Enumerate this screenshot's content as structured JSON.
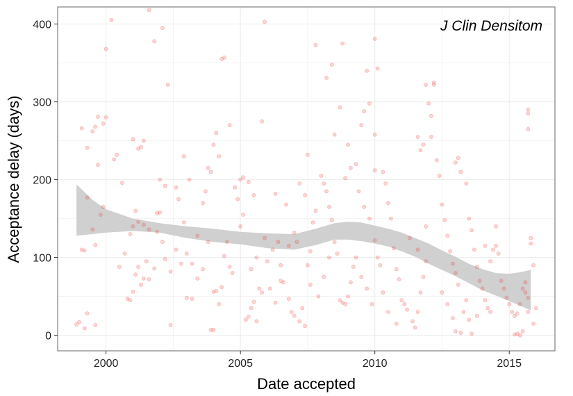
{
  "chart_data": {
    "type": "scatter",
    "title": "",
    "annotation": "J Clin Densitom",
    "xlabel": "Date accepted",
    "ylabel": "Acceptance delay (days)",
    "xlim": [
      1998.2,
      2016.7
    ],
    "ylim": [
      -20,
      422
    ],
    "x_ticks": [
      2000,
      2005,
      2010,
      2015
    ],
    "x_tick_labels": [
      "2000",
      "2005",
      "2010",
      "2015"
    ],
    "y_ticks": [
      0,
      100,
      200,
      300,
      400
    ],
    "y_tick_labels": [
      "0",
      "100",
      "200",
      "300",
      "400"
    ],
    "grid": true,
    "point_color": "#e8413a",
    "band_color": "#cccccc",
    "points": [
      [
        1998.9,
        14
      ],
      [
        1999.0,
        17
      ],
      [
        1999.2,
        9
      ],
      [
        1999.3,
        28
      ],
      [
        1999.6,
        13
      ],
      [
        1999.1,
        110
      ],
      [
        1999.2,
        109
      ],
      [
        1999.6,
        116
      ],
      [
        1999.5,
        136
      ],
      [
        1999.8,
        155
      ],
      [
        1999.7,
        219
      ],
      [
        1999.9,
        165
      ],
      [
        1999.3,
        241
      ],
      [
        1999.5,
        262
      ],
      [
        1999.6,
        268
      ],
      [
        1999.7,
        281
      ],
      [
        1999.9,
        272
      ],
      [
        2000.0,
        280
      ],
      [
        2000.0,
        368
      ],
      [
        2000.2,
        405
      ],
      [
        1999.1,
        266
      ],
      [
        1999.3,
        177
      ],
      [
        2000.3,
        226
      ],
      [
        2000.4,
        232
      ],
      [
        2000.6,
        196
      ],
      [
        2000.8,
        47
      ],
      [
        2000.9,
        45
      ],
      [
        2001.0,
        56
      ],
      [
        2001.1,
        78
      ],
      [
        2001.2,
        88
      ],
      [
        2001.3,
        65
      ],
      [
        2001.4,
        73
      ],
      [
        2001.5,
        95
      ],
      [
        2001.6,
        72
      ],
      [
        2001.8,
        86
      ],
      [
        2001.9,
        133
      ],
      [
        2001.0,
        140
      ],
      [
        2001.2,
        146
      ],
      [
        2001.4,
        142
      ],
      [
        2001.6,
        136
      ],
      [
        2001.9,
        157
      ],
      [
        2002.0,
        158
      ],
      [
        2002.1,
        120
      ],
      [
        2002.2,
        98
      ],
      [
        2002.4,
        82
      ],
      [
        2001.0,
        252
      ],
      [
        2001.2,
        240
      ],
      [
        2001.3,
        242
      ],
      [
        2001.4,
        250
      ],
      [
        2001.6,
        418
      ],
      [
        2001.8,
        378
      ],
      [
        2002.1,
        395
      ],
      [
        2002.0,
        200
      ],
      [
        2002.2,
        192
      ],
      [
        2002.3,
        322
      ],
      [
        2002.4,
        13
      ],
      [
        2002.6,
        110
      ],
      [
        2002.8,
        92
      ],
      [
        2002.9,
        145
      ],
      [
        2003.0,
        48
      ],
      [
        2003.2,
        47
      ],
      [
        2003.4,
        128
      ],
      [
        2003.6,
        170
      ],
      [
        2003.7,
        185
      ],
      [
        2003.8,
        215
      ],
      [
        2003.9,
        210
      ],
      [
        2004.0,
        7
      ],
      [
        2003.9,
        7
      ],
      [
        2004.0,
        56
      ],
      [
        2004.1,
        57
      ],
      [
        2004.2,
        40
      ],
      [
        2004.3,
        62
      ],
      [
        2004.4,
        102
      ],
      [
        2004.5,
        120
      ],
      [
        2004.6,
        88
      ],
      [
        2004.7,
        80
      ],
      [
        2004.0,
        245
      ],
      [
        2004.1,
        260
      ],
      [
        2004.2,
        230
      ],
      [
        2004.3,
        355
      ],
      [
        2004.4,
        357
      ],
      [
        2004.6,
        270
      ],
      [
        2004.8,
        190
      ],
      [
        2004.9,
        175
      ],
      [
        2005.0,
        140
      ],
      [
        2005.1,
        155
      ],
      [
        2005.2,
        20
      ],
      [
        2005.3,
        24
      ],
      [
        2005.4,
        35
      ],
      [
        2005.5,
        43
      ],
      [
        2005.6,
        18
      ],
      [
        2005.7,
        60
      ],
      [
        2005.8,
        55
      ],
      [
        2005.0,
        200
      ],
      [
        2005.1,
        203
      ],
      [
        2005.3,
        197
      ],
      [
        2005.5,
        180
      ],
      [
        2005.8,
        275
      ],
      [
        2005.9,
        403
      ],
      [
        2006.0,
        95
      ],
      [
        2006.2,
        110
      ],
      [
        2006.4,
        120
      ],
      [
        2006.5,
        70
      ],
      [
        2006.6,
        68
      ],
      [
        2006.8,
        47
      ],
      [
        2006.9,
        30
      ],
      [
        2007.0,
        25
      ],
      [
        2007.2,
        18
      ],
      [
        2007.3,
        35
      ],
      [
        2007.4,
        12
      ],
      [
        2007.5,
        90
      ],
      [
        2007.6,
        108
      ],
      [
        2007.7,
        145
      ],
      [
        2007.8,
        160
      ],
      [
        2007.2,
        195
      ],
      [
        2007.4,
        180
      ],
      [
        2007.5,
        232
      ],
      [
        2007.8,
        373
      ],
      [
        2008.0,
        205
      ],
      [
        2008.1,
        195
      ],
      [
        2008.2,
        185
      ],
      [
        2008.3,
        165
      ],
      [
        2008.4,
        148
      ],
      [
        2008.5,
        120
      ],
      [
        2008.6,
        105
      ],
      [
        2008.7,
        45
      ],
      [
        2008.8,
        42
      ],
      [
        2008.9,
        40
      ],
      [
        2009.0,
        50
      ],
      [
        2009.1,
        68
      ],
      [
        2009.2,
        88
      ],
      [
        2009.0,
        245
      ],
      [
        2008.2,
        331
      ],
      [
        2008.4,
        348
      ],
      [
        2008.7,
        293
      ],
      [
        2008.9,
        202
      ],
      [
        2009.1,
        215
      ],
      [
        2009.3,
        220
      ],
      [
        2009.5,
        270
      ],
      [
        2009.6,
        288
      ],
      [
        2009.7,
        340
      ],
      [
        2009.8,
        298
      ],
      [
        2008.5,
        258
      ],
      [
        2008.8,
        375
      ],
      [
        2009.4,
        185
      ],
      [
        2009.6,
        165
      ],
      [
        2009.8,
        150
      ],
      [
        2010.0,
        122
      ],
      [
        2010.1,
        100
      ],
      [
        2010.2,
        90
      ],
      [
        2010.0,
        212
      ],
      [
        2010.0,
        258
      ],
      [
        2010.0,
        381
      ],
      [
        2010.1,
        343
      ],
      [
        2010.3,
        210
      ],
      [
        2010.4,
        195
      ],
      [
        2010.5,
        170
      ],
      [
        2010.6,
        150
      ],
      [
        2010.7,
        112
      ],
      [
        2010.8,
        85
      ],
      [
        2010.9,
        72
      ],
      [
        2011.0,
        45
      ],
      [
        2011.1,
        40
      ],
      [
        2011.2,
        33
      ],
      [
        2011.4,
        18
      ],
      [
        2011.5,
        10
      ],
      [
        2011.6,
        30
      ],
      [
        2011.7,
        55
      ],
      [
        2011.8,
        75
      ],
      [
        2011.9,
        95
      ],
      [
        2011.6,
        255
      ],
      [
        2011.7,
        238
      ],
      [
        2011.8,
        245
      ],
      [
        2011.9,
        322
      ],
      [
        2012.0,
        298
      ],
      [
        2012.1,
        282
      ],
      [
        2012.2,
        322
      ],
      [
        2012.2,
        325
      ],
      [
        2012.1,
        255
      ],
      [
        2012.3,
        225
      ],
      [
        2012.4,
        205
      ],
      [
        2012.5,
        168
      ],
      [
        2012.6,
        148
      ],
      [
        2012.7,
        128
      ],
      [
        2012.8,
        108
      ],
      [
        2012.9,
        92
      ],
      [
        2013.0,
        80
      ],
      [
        2013.1,
        65
      ],
      [
        2013.0,
        5
      ],
      [
        2013.2,
        3
      ],
      [
        2013.3,
        30
      ],
      [
        2013.4,
        45
      ],
      [
        2013.0,
        222
      ],
      [
        2013.1,
        228
      ],
      [
        2013.2,
        210
      ],
      [
        2013.4,
        195
      ],
      [
        2013.5,
        150
      ],
      [
        2013.6,
        135
      ],
      [
        2013.7,
        110
      ],
      [
        2013.8,
        88
      ],
      [
        2013.9,
        70
      ],
      [
        2014.0,
        60
      ],
      [
        2014.1,
        45
      ],
      [
        2014.2,
        35
      ],
      [
        2014.3,
        30
      ],
      [
        2014.5,
        140
      ],
      [
        2014.5,
        115
      ],
      [
        2014.4,
        110
      ],
      [
        2014.6,
        105
      ],
      [
        2014.7,
        70
      ],
      [
        2014.8,
        60
      ],
      [
        2014.9,
        48
      ],
      [
        2015.0,
        40
      ],
      [
        2015.1,
        30
      ],
      [
        2015.2,
        25
      ],
      [
        2015.3,
        28
      ],
      [
        2015.4,
        40
      ],
      [
        2015.2,
        1
      ],
      [
        2015.3,
        2
      ],
      [
        2015.4,
        0
      ],
      [
        2015.5,
        5
      ],
      [
        2015.5,
        60
      ],
      [
        2015.6,
        55
      ],
      [
        2015.6,
        68
      ],
      [
        2015.7,
        48
      ],
      [
        2015.7,
        30
      ],
      [
        2015.7,
        290
      ],
      [
        2015.7,
        285
      ],
      [
        2015.7,
        265
      ],
      [
        2015.8,
        125
      ],
      [
        2015.8,
        118
      ],
      [
        2015.9,
        90
      ],
      [
        2015.9,
        15
      ],
      [
        2016.0,
        35
      ],
      [
        2013.6,
        2
      ],
      [
        2013.5,
        20
      ],
      [
        2013.8,
        25
      ],
      [
        2014.1,
        115
      ],
      [
        2014.3,
        95
      ],
      [
        2003.0,
        105
      ],
      [
        2003.2,
        92
      ],
      [
        2003.4,
        73
      ],
      [
        2003.6,
        85
      ],
      [
        2003.8,
        120
      ],
      [
        2006.3,
        182
      ],
      [
        2006.7,
        168
      ],
      [
        2007.0,
        132
      ],
      [
        2007.1,
        120
      ],
      [
        2006.1,
        60
      ],
      [
        2006.3,
        42
      ],
      [
        2000.5,
        88
      ],
      [
        2000.7,
        105
      ],
      [
        2000.9,
        130
      ],
      [
        2001.1,
        160
      ],
      [
        2002.6,
        190
      ],
      [
        2002.7,
        175
      ],
      [
        2002.9,
        230
      ],
      [
        2003.1,
        200
      ],
      [
        2009.3,
        100
      ],
      [
        2009.5,
        75
      ],
      [
        2009.7,
        60
      ],
      [
        2009.9,
        40
      ],
      [
        2010.3,
        55
      ],
      [
        2010.5,
        30
      ],
      [
        2010.8,
        15
      ],
      [
        2011.3,
        125
      ],
      [
        2011.6,
        110
      ],
      [
        2011.9,
        140
      ],
      [
        2012.5,
        55
      ],
      [
        2012.7,
        40
      ],
      [
        2012.9,
        22
      ],
      [
        2005.4,
        85
      ],
      [
        2005.6,
        100
      ],
      [
        2005.9,
        125
      ],
      [
        2006.5,
        90
      ],
      [
        2006.8,
        115
      ],
      [
        2007.6,
        65
      ],
      [
        2007.9,
        50
      ],
      [
        2008.1,
        75
      ],
      [
        2008.3,
        100
      ]
    ],
    "trend": {
      "x": [
        1998.9,
        1999.5,
        2000.0,
        2001.0,
        2002.0,
        2003.0,
        2004.0,
        2005.0,
        2006.0,
        2007.0,
        2007.8,
        2008.5,
        2009.0,
        2009.5,
        2010.0,
        2010.5,
        2011.0,
        2011.5,
        2012.0,
        2012.5,
        2013.0,
        2013.5,
        2014.0,
        2014.5,
        2015.0,
        2015.4,
        2015.8
      ],
      "lower": [
        128,
        130,
        132,
        134,
        132,
        125,
        120,
        117,
        112,
        110,
        116,
        123,
        123,
        121,
        118,
        114,
        108,
        101,
        92,
        84,
        76,
        67,
        58,
        51,
        44,
        38,
        32
      ],
      "upper": [
        194,
        174,
        162,
        150,
        144,
        140,
        137,
        133,
        131,
        130,
        137,
        144,
        146,
        145,
        141,
        137,
        132,
        125,
        118,
        109,
        101,
        92,
        85,
        80,
        79,
        81,
        84
      ]
    }
  }
}
